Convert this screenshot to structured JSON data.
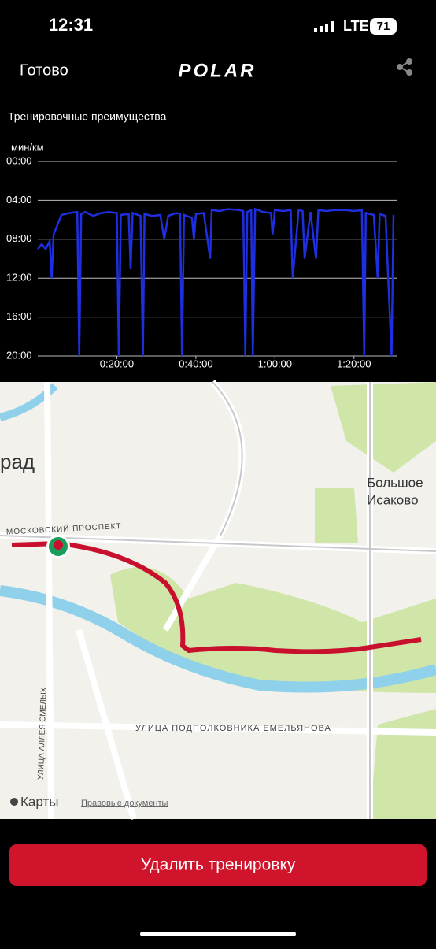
{
  "status_bar": {
    "time": "12:31",
    "network": "LTE",
    "battery": "71"
  },
  "header": {
    "done": "Готово",
    "logo": "POLAR"
  },
  "section_title": "Тренировочные преимущества",
  "chart_data": {
    "type": "line",
    "y_label": "мин/км",
    "color": "#1f2fe0",
    "grid": true,
    "xlim": [
      0,
      91
    ],
    "ylim": [
      20,
      0
    ],
    "xticks": [
      {
        "value": 20,
        "label": "0:20:00"
      },
      {
        "value": 40,
        "label": "0:40:00"
      },
      {
        "value": 60,
        "label": "1:00:00"
      },
      {
        "value": 80,
        "label": "1:20:00"
      }
    ],
    "yticks": [
      {
        "value": 0,
        "label": "00:00"
      },
      {
        "value": 4,
        "label": "04:00"
      },
      {
        "value": 8,
        "label": "08:00"
      },
      {
        "value": 12,
        "label": "12:00"
      },
      {
        "value": 16,
        "label": "16:00"
      },
      {
        "value": 20,
        "label": "20:00"
      }
    ],
    "x": [
      0,
      1,
      2,
      3,
      3.5,
      4,
      5,
      6,
      8,
      10,
      10.5,
      11,
      12,
      14,
      16,
      18,
      20,
      20.5,
      21,
      23,
      23.5,
      24,
      26,
      26.6,
      27,
      29,
      31,
      32,
      33,
      35,
      36,
      36.5,
      37,
      39,
      39.5,
      40,
      42,
      43.6,
      44,
      46,
      48,
      51,
      52,
      52.5,
      53,
      54,
      54.4,
      55,
      57,
      59,
      59.4,
      60,
      62,
      64,
      64.5,
      66,
      67,
      67.5,
      69,
      70.4,
      71,
      73,
      75,
      78,
      80,
      82,
      82.6,
      83,
      85,
      86,
      86.5,
      88,
      89.5,
      90
    ],
    "values": [
      9,
      8.5,
      9,
      8.2,
      12,
      7.5,
      6.5,
      5.5,
      5.3,
      5.2,
      20,
      5.4,
      5.2,
      5.6,
      5.3,
      5.2,
      5.3,
      20,
      5.5,
      5.4,
      11,
      5.3,
      5.6,
      20,
      5.4,
      5.6,
      5.5,
      8,
      5.6,
      5.3,
      5.4,
      20,
      5.5,
      5.8,
      8,
      5.4,
      5.3,
      10,
      5.0,
      5.1,
      4.9,
      5.0,
      5.1,
      20,
      5.2,
      5.0,
      20,
      4.9,
      5.2,
      5.3,
      7.5,
      5.0,
      5.1,
      5.0,
      12,
      5.0,
      5.1,
      10,
      5.2,
      10,
      5.0,
      5.1,
      5.0,
      5.0,
      5.1,
      5.0,
      20,
      5.3,
      5.5,
      12,
      5.4,
      5.6,
      20,
      5.5
    ]
  },
  "map": {
    "city": "рад",
    "village_1": "Большое",
    "village_2": "Исаково",
    "street_1": "МОСКОВСКИЙ ПРОСПЕКТ",
    "street_2": "УЛИЦА ПОДПОЛКОВНИКА ЕМЕЛЬЯНОВА",
    "street_3": "УЛИЦА АЛЛЕЯ СМЕЛЫХ",
    "brand": "Карты",
    "legal": "Правовые документы"
  },
  "button": "Удалить тренировку"
}
